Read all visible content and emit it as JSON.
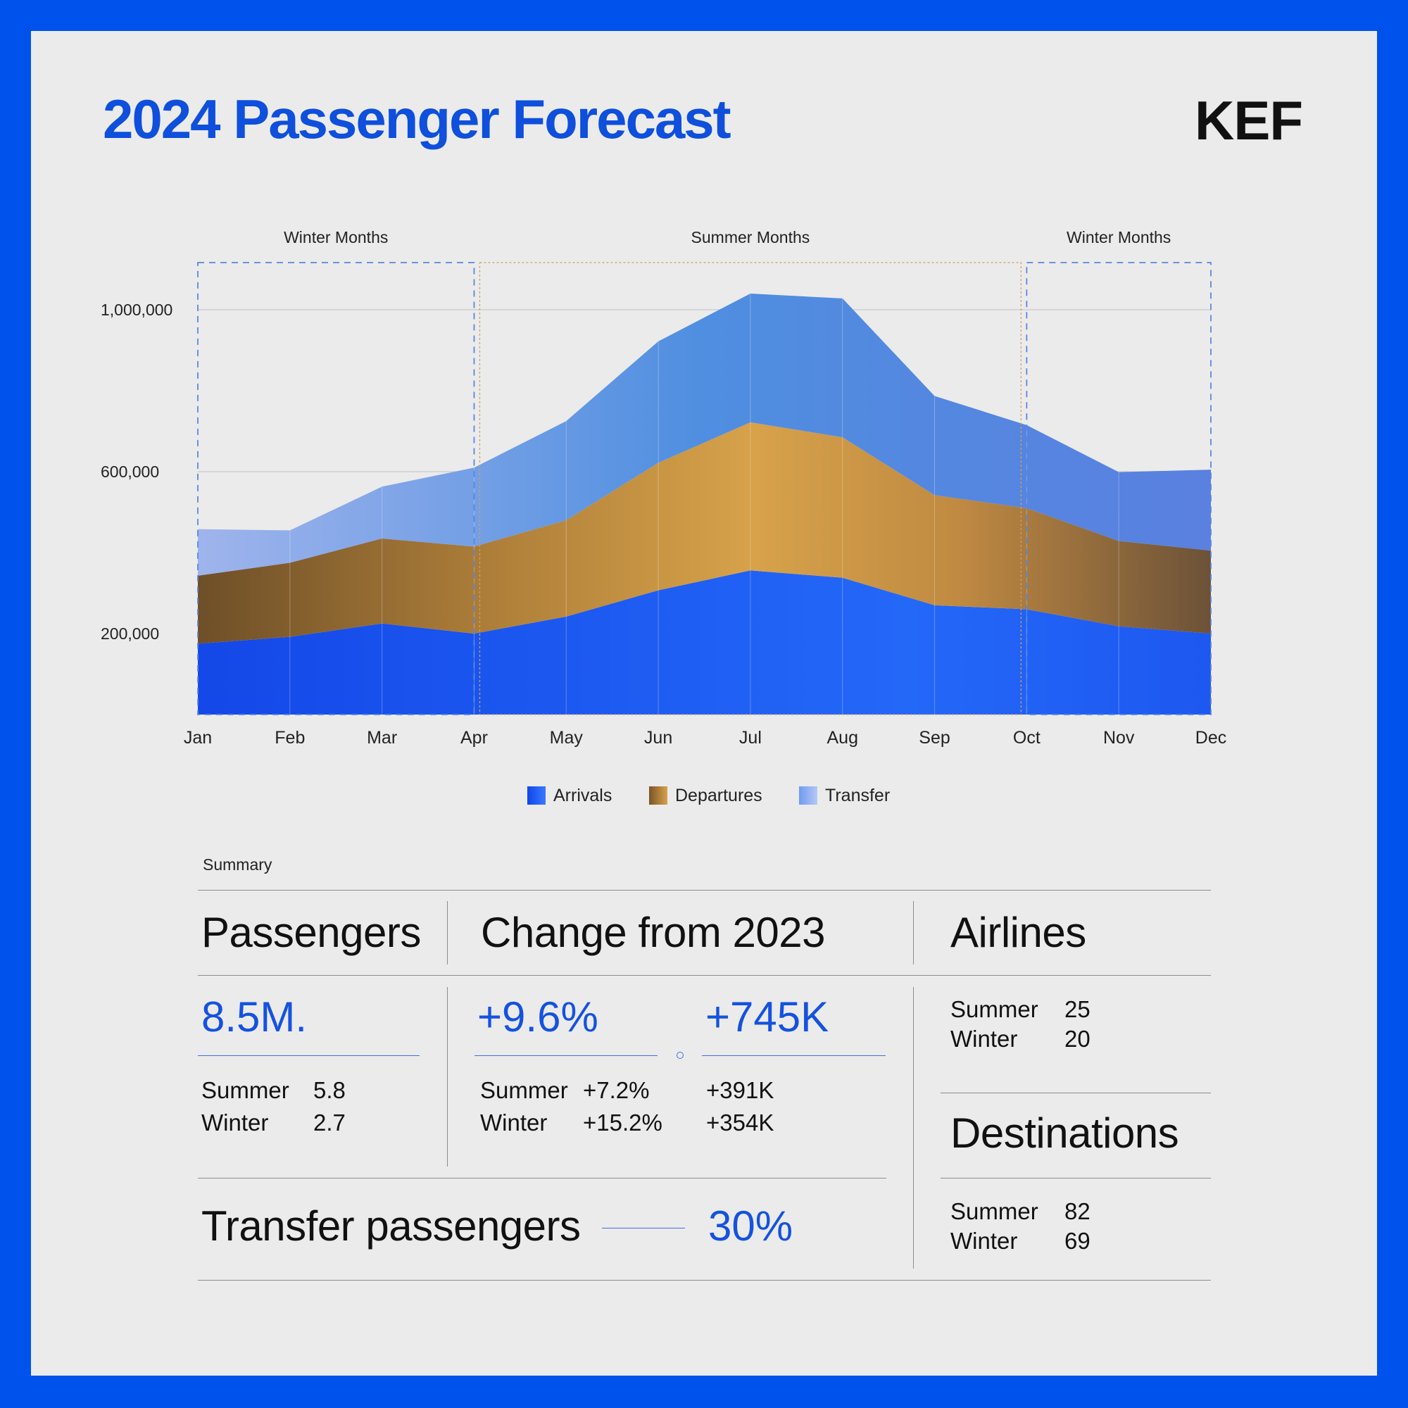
{
  "header": {
    "title": "2024 Passenger Forecast",
    "logo": "KEF"
  },
  "colors": {
    "frame": "#0052ec",
    "panel": "#ebebeb",
    "title": "#0e4fdc",
    "arrivals": "#1c5cf5",
    "departures": "#b0803a",
    "transfer": "#6a96e8",
    "winter_box": "#5b86e0",
    "summer_box": "#d4a060"
  },
  "chart_data": {
    "type": "area",
    "stacked": true,
    "x": [
      "Jan",
      "Feb",
      "Mar",
      "Apr",
      "May",
      "Jun",
      "Jul",
      "Aug",
      "Sep",
      "Oct",
      "Nov",
      "Dec"
    ],
    "series": [
      {
        "name": "Arrivals",
        "values": [
          175000,
          192000,
          225000,
          200000,
          242000,
          307000,
          356000,
          338000,
          270000,
          260000,
          218000,
          200000
        ]
      },
      {
        "name": "Departures",
        "values": [
          168000,
          183000,
          210000,
          215000,
          238000,
          315000,
          366000,
          347000,
          272000,
          250000,
          211000,
          205000
        ]
      },
      {
        "name": "Transfer",
        "values": [
          115000,
          80000,
          128000,
          195000,
          245000,
          300000,
          318000,
          343000,
          245000,
          205000,
          170000,
          200000
        ]
      }
    ],
    "yticks": [
      {
        "value": 200000,
        "label": "200,000"
      },
      {
        "value": 600000,
        "label": "600,000"
      },
      {
        "value": 1000000,
        "label": "1,000,000"
      }
    ],
    "ylim": [
      0,
      1000000
    ],
    "regions": [
      {
        "label": "Winter Months",
        "from": "Jan",
        "to": "Apr",
        "season": "winter"
      },
      {
        "label": "Summer Months",
        "from": "Apr",
        "to": "Oct",
        "season": "summer"
      },
      {
        "label": "Winter Months",
        "from": "Oct",
        "to": "Dec",
        "season": "winter"
      }
    ],
    "legend_position": "bottom-center",
    "grid": true
  },
  "summary": {
    "section_label": "Summary",
    "passengers": {
      "heading": "Passengers",
      "total": "8.5M.",
      "summer_label": "Summer",
      "summer_value": "5.8",
      "winter_label": "Winter",
      "winter_value": "2.7"
    },
    "change": {
      "heading": "Change from 2023",
      "pct_total": "+9.6%",
      "abs_total": "+745K",
      "summer_label": "Summer",
      "summer_pct": "+7.2%",
      "summer_abs": "+391K",
      "winter_label": "Winter",
      "winter_pct": "+15.2%",
      "winter_abs": "+354K"
    },
    "airlines": {
      "heading": "Airlines",
      "summer_label": "Summer",
      "summer_value": "25",
      "winter_label": "Winter",
      "winter_value": "20"
    },
    "destinations": {
      "heading": "Destinations",
      "summer_label": "Summer",
      "summer_value": "82",
      "winter_label": "Winter",
      "winter_value": "69"
    },
    "transfer": {
      "heading": "Transfer passengers",
      "value": "30%"
    }
  }
}
